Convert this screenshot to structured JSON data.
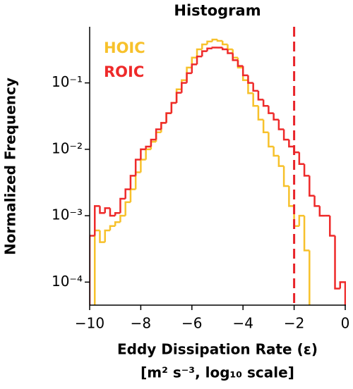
{
  "chart_data": {
    "type": "histogram",
    "title": "Histogram",
    "xlabel": "Eddy Dissipation Rate (ε)",
    "xlabel2": "[m² s⁻³,  log₁₀ scale]",
    "ylabel": "Normalized Frequency",
    "log_y": true,
    "legend": "upper left",
    "bins": [
      -10,
      -9.8,
      -9.6,
      -9.4,
      -9.2,
      -9,
      -8.8,
      -8.6,
      -8.4,
      -8.2,
      -8,
      -7.8,
      -7.6,
      -7.4,
      -7.2,
      -7,
      -6.8,
      -6.6,
      -6.4,
      -6.2,
      -6,
      -5.8,
      -5.6,
      -5.4,
      -5.2,
      -5,
      -4.8,
      -4.6,
      -4.4,
      -4.2,
      -4,
      -3.8,
      -3.6,
      -3.4,
      -3.2,
      -3,
      -2.8,
      -2.6,
      -2.4,
      -2.2,
      -2,
      -1.8,
      -1.6,
      -1.4,
      -1.2,
      -1,
      -0.8,
      -0.6,
      -0.4,
      -0.2,
      0
    ],
    "series": [
      {
        "name": "HOIC",
        "color": "#f7c12b",
        "values": [
          0,
          0.0006,
          0.0004,
          0.0006,
          0.0007,
          0.0008,
          0.001,
          0.0016,
          0.0025,
          0.0045,
          0.007,
          0.01,
          0.013,
          0.018,
          0.025,
          0.035,
          0.05,
          0.08,
          0.11,
          0.17,
          0.24,
          0.32,
          0.38,
          0.42,
          0.45,
          0.43,
          0.38,
          0.32,
          0.24,
          0.17,
          0.11,
          0.07,
          0.045,
          0.028,
          0.018,
          0.011,
          0.008,
          0.0056,
          0.0028,
          0.0014,
          0.0007,
          0.001,
          0.0003,
          4e-05,
          0,
          0,
          0,
          0,
          0,
          0
        ]
      },
      {
        "name": "ROIC",
        "color": "#ee2a2a",
        "values": [
          0.0005,
          0.0014,
          0.0011,
          0.0013,
          0.001,
          0.0011,
          0.0018,
          0.0025,
          0.004,
          0.007,
          0.01,
          0.011,
          0.014,
          0.02,
          0.025,
          0.035,
          0.05,
          0.071,
          0.1,
          0.14,
          0.19,
          0.25,
          0.3,
          0.33,
          0.34,
          0.34,
          0.32,
          0.28,
          0.22,
          0.18,
          0.13,
          0.1,
          0.076,
          0.056,
          0.045,
          0.035,
          0.028,
          0.02,
          0.014,
          0.011,
          0.009,
          0.006,
          0.004,
          0.002,
          0.0014,
          0.001,
          0.001,
          0.0005,
          8e-05,
          0.0001
        ]
      }
    ],
    "vline": {
      "x": -2,
      "color": "#e8242a"
    },
    "xlim": [
      -10,
      0
    ],
    "xticks": [
      {
        "value": -10,
        "label": "−10"
      },
      {
        "value": -8,
        "label": "−8"
      },
      {
        "value": -6,
        "label": "−6"
      },
      {
        "value": -4,
        "label": "−4"
      },
      {
        "value": -2,
        "label": "−2"
      },
      0
    ],
    "ylim": [
      4.5e-05,
      0.7
    ],
    "yticks": [
      {
        "value": 0.0001,
        "label": "10⁻⁴"
      },
      {
        "value": 0.001,
        "label": "10⁻³"
      },
      {
        "value": 0.01,
        "label": "10⁻²"
      },
      {
        "value": 0.1,
        "label": "10⁻¹"
      }
    ]
  }
}
